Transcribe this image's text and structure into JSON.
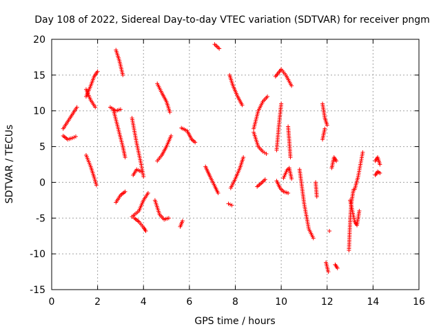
{
  "chart_data": {
    "type": "scatter",
    "title": "Day 108 of 2022, Sidereal Day-to-day VTEC variation (SDTVAR) for receiver pngm",
    "xlabel": "GPS time / hours",
    "ylabel": "SDTVAR / TECUs",
    "xlim": [
      0,
      16
    ],
    "ylim": [
      -15,
      20
    ],
    "xticks": [
      "0",
      "2",
      "4",
      "6",
      "8",
      "10",
      "12",
      "14",
      "16"
    ],
    "yticks": [
      "-15",
      "-10",
      "-5",
      "0",
      "5",
      "10",
      "15",
      "20"
    ],
    "grid": true,
    "marker": "+",
    "color": "#ff0000",
    "segments": [
      [
        [
          0.5,
          7.5
        ],
        [
          0.7,
          8.5
        ],
        [
          0.9,
          9.5
        ],
        [
          1.1,
          10.5
        ]
      ],
      [
        [
          0.5,
          6.5
        ],
        [
          0.7,
          6.0
        ],
        [
          0.9,
          6.2
        ],
        [
          1.05,
          6.4
        ]
      ],
      [
        [
          1.5,
          12.0
        ],
        [
          1.7,
          13.5
        ],
        [
          1.85,
          14.8
        ],
        [
          2.0,
          15.5
        ]
      ],
      [
        [
          1.5,
          13.0
        ],
        [
          1.7,
          11.5
        ],
        [
          1.9,
          10.5
        ]
      ],
      [
        [
          1.5,
          3.8
        ],
        [
          1.7,
          2.2
        ],
        [
          1.85,
          0.7
        ],
        [
          1.95,
          -0.4
        ]
      ],
      [
        [
          2.55,
          10.5
        ],
        [
          2.8,
          10.0
        ],
        [
          3.0,
          10.2
        ]
      ],
      [
        [
          2.8,
          18.5
        ],
        [
          2.95,
          17.0
        ],
        [
          3.1,
          15.0
        ]
      ],
      [
        [
          2.7,
          10.0
        ],
        [
          2.9,
          7.5
        ],
        [
          3.1,
          5.0
        ],
        [
          3.2,
          3.5
        ]
      ],
      [
        [
          2.8,
          -2.8
        ],
        [
          3.0,
          -1.8
        ],
        [
          3.2,
          -1.3
        ]
      ],
      [
        [
          3.5,
          9.0
        ],
        [
          3.7,
          5.5
        ],
        [
          3.9,
          2.5
        ],
        [
          4.0,
          0.8
        ]
      ],
      [
        [
          3.55,
          1.0
        ],
        [
          3.7,
          1.8
        ],
        [
          3.9,
          1.5
        ]
      ],
      [
        [
          3.5,
          -4.8
        ],
        [
          3.8,
          -4.0
        ],
        [
          4.0,
          -2.5
        ],
        [
          4.2,
          -1.5
        ]
      ],
      [
        [
          3.6,
          -5.0
        ],
        [
          3.8,
          -5.5
        ],
        [
          4.0,
          -6.3
        ],
        [
          4.1,
          -6.8
        ]
      ],
      [
        [
          4.6,
          13.8
        ],
        [
          4.8,
          12.5
        ],
        [
          5.0,
          11.3
        ],
        [
          5.15,
          9.8
        ]
      ],
      [
        [
          4.6,
          3.0
        ],
        [
          4.8,
          3.8
        ],
        [
          5.0,
          5.0
        ],
        [
          5.2,
          6.5
        ]
      ],
      [
        [
          4.5,
          -2.5
        ],
        [
          4.7,
          -4.5
        ],
        [
          4.9,
          -5.2
        ],
        [
          5.1,
          -5.0
        ]
      ],
      [
        [
          5.6,
          -6.2
        ],
        [
          5.7,
          -5.4
        ]
      ],
      [
        [
          5.65,
          7.6
        ],
        [
          5.9,
          7.2
        ],
        [
          6.1,
          6.0
        ],
        [
          6.25,
          5.6
        ]
      ],
      [
        [
          6.7,
          2.2
        ],
        [
          6.9,
          0.8
        ],
        [
          7.1,
          -0.5
        ],
        [
          7.25,
          -1.5
        ]
      ],
      [
        [
          7.1,
          19.3
        ],
        [
          7.3,
          18.7
        ]
      ],
      [
        [
          7.75,
          15.0
        ],
        [
          7.9,
          13.5
        ],
        [
          8.1,
          12.0
        ],
        [
          8.3,
          10.8
        ]
      ],
      [
        [
          7.7,
          -3.0
        ],
        [
          7.85,
          -3.2
        ]
      ],
      [
        [
          7.8,
          -0.8
        ],
        [
          8.0,
          0.5
        ],
        [
          8.2,
          2.0
        ],
        [
          8.35,
          3.5
        ]
      ],
      [
        [
          8.8,
          7.5
        ],
        [
          9.0,
          10.0
        ],
        [
          9.2,
          11.3
        ],
        [
          9.4,
          12.0
        ]
      ],
      [
        [
          8.8,
          7.0
        ],
        [
          9.0,
          5.0
        ],
        [
          9.2,
          4.3
        ],
        [
          9.35,
          4.0
        ]
      ],
      [
        [
          8.95,
          -0.6
        ],
        [
          9.1,
          -0.2
        ],
        [
          9.3,
          0.4
        ]
      ],
      [
        [
          9.75,
          14.8
        ],
        [
          10.0,
          15.8
        ],
        [
          10.2,
          15.0
        ],
        [
          10.45,
          13.5
        ]
      ],
      [
        [
          9.8,
          4.5
        ],
        [
          9.9,
          8.0
        ],
        [
          10.0,
          11.0
        ]
      ],
      [
        [
          9.8,
          0.2
        ],
        [
          9.95,
          -0.8
        ],
        [
          10.1,
          -1.3
        ],
        [
          10.3,
          -1.5
        ]
      ],
      [
        [
          10.1,
          0.6
        ],
        [
          10.25,
          1.7
        ],
        [
          10.35,
          2.0
        ],
        [
          10.45,
          0.5
        ]
      ],
      [
        [
          10.3,
          7.8
        ],
        [
          10.35,
          5.8
        ],
        [
          10.4,
          3.5
        ]
      ],
      [
        [
          10.8,
          1.8
        ],
        [
          11.0,
          -3.0
        ],
        [
          11.2,
          -6.5
        ],
        [
          11.4,
          -7.8
        ]
      ],
      [
        [
          11.5,
          0.0
        ],
        [
          11.55,
          -2.0
        ]
      ],
      [
        [
          11.8,
          11.0
        ],
        [
          11.9,
          9.0
        ],
        [
          12.0,
          8.0
        ]
      ],
      [
        [
          11.8,
          6.0
        ],
        [
          11.9,
          7.5
        ]
      ],
      [
        [
          11.95,
          -11.2
        ],
        [
          12.05,
          -12.5
        ]
      ],
      [
        [
          12.1,
          -6.8
        ]
      ],
      [
        [
          12.2,
          2.0
        ],
        [
          12.3,
          3.5
        ],
        [
          12.4,
          3.0
        ]
      ],
      [
        [
          12.35,
          -11.5
        ],
        [
          12.45,
          -12.0
        ]
      ],
      [
        [
          12.95,
          -9.5
        ],
        [
          13.0,
          -5.5
        ],
        [
          13.05,
          -3.0
        ],
        [
          13.15,
          -1.0
        ]
      ],
      [
        [
          13.0,
          -2.5
        ],
        [
          13.2,
          -5.5
        ],
        [
          13.3,
          -6.0
        ],
        [
          13.4,
          -4.0
        ]
      ],
      [
        [
          13.2,
          -1.0
        ],
        [
          13.35,
          0.8
        ],
        [
          13.45,
          2.5
        ],
        [
          13.55,
          4.2
        ]
      ],
      [
        [
          14.1,
          3.0
        ],
        [
          14.2,
          3.5
        ],
        [
          14.3,
          2.5
        ]
      ],
      [
        [
          14.1,
          1.0
        ],
        [
          14.2,
          1.5
        ],
        [
          14.3,
          1.3
        ]
      ]
    ]
  }
}
